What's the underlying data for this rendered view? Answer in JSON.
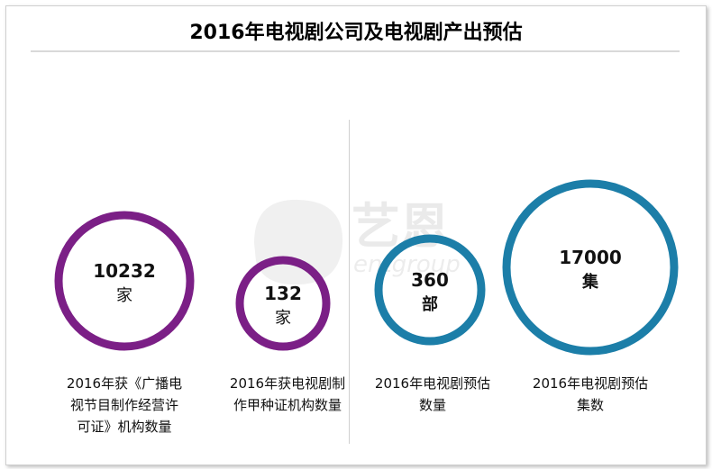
{
  "chart_data": {
    "type": "bubble",
    "title": "2016年电视剧公司及电视剧产出预估",
    "items": [
      {
        "value": "10232",
        "unit": "家",
        "label": [
          "2016年获《广播电",
          "视节目制作经营许",
          "可证》机构数量"
        ],
        "color": "#7b1f86"
      },
      {
        "value": "132",
        "unit": "家",
        "label": [
          "2016年获电视剧制",
          "作甲种证机构数量"
        ],
        "color": "#7b1f86"
      },
      {
        "value": "360",
        "unit": "部",
        "label": [
          "2016年电视剧预估",
          "数量"
        ],
        "color": "#1c7ea8"
      },
      {
        "value": "17000",
        "unit": "集",
        "label": [
          "2016年电视剧预估",
          "集数"
        ],
        "color": "#1c7ea8"
      }
    ]
  },
  "watermark": {
    "brand": "艺恩",
    "sub": "entgroup"
  }
}
